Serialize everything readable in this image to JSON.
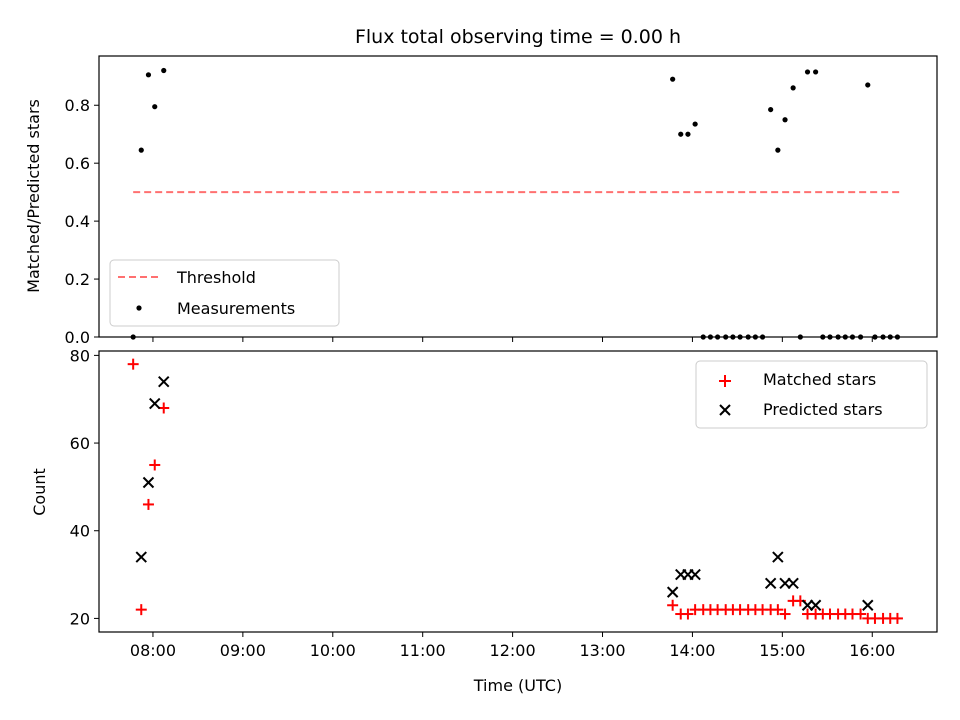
{
  "chart_data": [
    {
      "type": "scatter",
      "title": "Flux total observing time = 0.00 h",
      "xlabel": "",
      "ylabel": "Matched/Predicted stars",
      "xlim": [
        7.4,
        16.72
      ],
      "ylim": [
        0.0,
        0.97
      ],
      "yticks": [
        0.0,
        0.2,
        0.4,
        0.6,
        0.8
      ],
      "ytick_labels": [
        "0.0",
        "0.2",
        "0.4",
        "0.6",
        "0.8"
      ],
      "threshold": {
        "name": "Threshold",
        "x": [
          7.78,
          16.3
        ],
        "y": 0.5,
        "color": "#ff7070"
      },
      "series": [
        {
          "name": "Measurements",
          "color": "#000000",
          "x": [
            7.78,
            7.87,
            7.95,
            8.02,
            8.12,
            13.78,
            13.87,
            13.95,
            14.03,
            14.12,
            14.2,
            14.28,
            14.37,
            14.45,
            14.53,
            14.62,
            14.7,
            14.78,
            14.87,
            14.95,
            15.03,
            15.12,
            15.2,
            15.28,
            15.37,
            15.45,
            15.53,
            15.62,
            15.7,
            15.78,
            15.87,
            15.95,
            16.03,
            16.12,
            16.2,
            16.28
          ],
          "y": [
            0.0,
            0.645,
            0.905,
            0.795,
            0.92,
            0.89,
            0.7,
            0.7,
            0.735,
            0.0,
            0.0,
            0.0,
            0.0,
            0.0,
            0.0,
            0.0,
            0.0,
            0.0,
            0.785,
            0.645,
            0.75,
            0.86,
            0.0,
            0.915,
            0.915,
            0.0,
            0.0,
            0.0,
            0.0,
            0.0,
            0.0,
            0.87,
            0.0,
            0.0,
            0.0,
            0.0
          ]
        }
      ],
      "legend": {
        "position": "lower-left",
        "entries": [
          "Threshold",
          "Measurements"
        ]
      }
    },
    {
      "type": "scatter",
      "title": "",
      "xlabel": "Time (UTC)",
      "ylabel": "Count",
      "xlim": [
        7.4,
        16.72
      ],
      "ylim": [
        16.9,
        81.0
      ],
      "yticks": [
        20,
        40,
        60,
        80
      ],
      "ytick_labels": [
        "20",
        "40",
        "60",
        "80"
      ],
      "xticks": [
        8,
        9,
        10,
        11,
        12,
        13,
        14,
        15,
        16
      ],
      "xtick_labels": [
        "08:00",
        "09:00",
        "10:00",
        "11:00",
        "12:00",
        "13:00",
        "14:00",
        "15:00",
        "16:00"
      ],
      "series": [
        {
          "name": "Matched stars",
          "marker": "plus",
          "color": "#ff0000",
          "x": [
            7.78,
            7.87,
            7.95,
            8.02,
            8.12,
            13.78,
            13.87,
            13.95,
            14.03,
            14.12,
            14.2,
            14.28,
            14.37,
            14.45,
            14.53,
            14.62,
            14.7,
            14.78,
            14.87,
            14.95,
            15.03,
            15.12,
            15.2,
            15.28,
            15.37,
            15.45,
            15.53,
            15.62,
            15.7,
            15.78,
            15.87,
            15.95,
            16.03,
            16.12,
            16.2,
            16.28
          ],
          "y": [
            78,
            22,
            46,
            55,
            68,
            23,
            21,
            21,
            22,
            22,
            22,
            22,
            22,
            22,
            22,
            22,
            22,
            22,
            22,
            22,
            21,
            24,
            24,
            21,
            21,
            21,
            21,
            21,
            21,
            21,
            21,
            20,
            20,
            20,
            20,
            20
          ]
        },
        {
          "name": "Predicted stars",
          "marker": "x",
          "color": "#000000",
          "x": [
            7.87,
            7.95,
            8.02,
            8.12,
            13.78,
            13.87,
            13.95,
            14.03,
            14.87,
            14.95,
            15.03,
            15.12,
            15.28,
            15.37,
            15.95
          ],
          "y": [
            34,
            51,
            69,
            74,
            26,
            30,
            30,
            30,
            28,
            34,
            28,
            28,
            23,
            23,
            23
          ]
        }
      ],
      "legend": {
        "position": "top-right",
        "entries": [
          "Matched stars",
          "Predicted stars"
        ]
      }
    }
  ]
}
